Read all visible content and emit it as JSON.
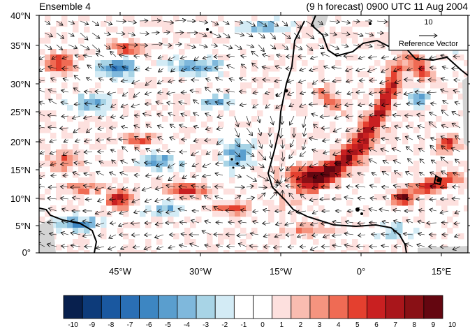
{
  "header": {
    "title_left": "Ensemble 4",
    "title_right": "(9 h forecast) 0900 UTC 11 Aug 2004"
  },
  "map": {
    "lat_labels": [
      "40°N",
      "35°N",
      "30°N",
      "25°N",
      "20°N",
      "15°N",
      "10°N",
      "5°N",
      "0°"
    ],
    "lon_labels": [
      "45°W",
      "30°W",
      "15°W",
      "0°",
      "15°E"
    ],
    "reference_vector": {
      "value": "10",
      "label": "Reference Vector"
    },
    "colors": {
      "coast": "#000000",
      "land_missing": "#d3d3d3"
    }
  },
  "colorbar": {
    "labels": [
      "-10",
      "-9",
      "-8",
      "-7",
      "-6",
      "-5",
      "-4",
      "-3",
      "-2",
      "-1",
      "0",
      "1",
      "2",
      "3",
      "4",
      "5",
      "6",
      "7",
      "8",
      "9",
      "10"
    ],
    "colors": [
      "#08204e",
      "#0d3b7a",
      "#1a58a0",
      "#2a6fb5",
      "#3d86c2",
      "#5a9ece",
      "#7fb8dc",
      "#a8d4e6",
      "#d3ebf5",
      "#ffffff",
      "#ffffff",
      "#fde0de",
      "#f9bcb0",
      "#f5947f",
      "#ef6b54",
      "#e4402f",
      "#c92021",
      "#a9161b",
      "#891015",
      "#640610"
    ]
  }
}
